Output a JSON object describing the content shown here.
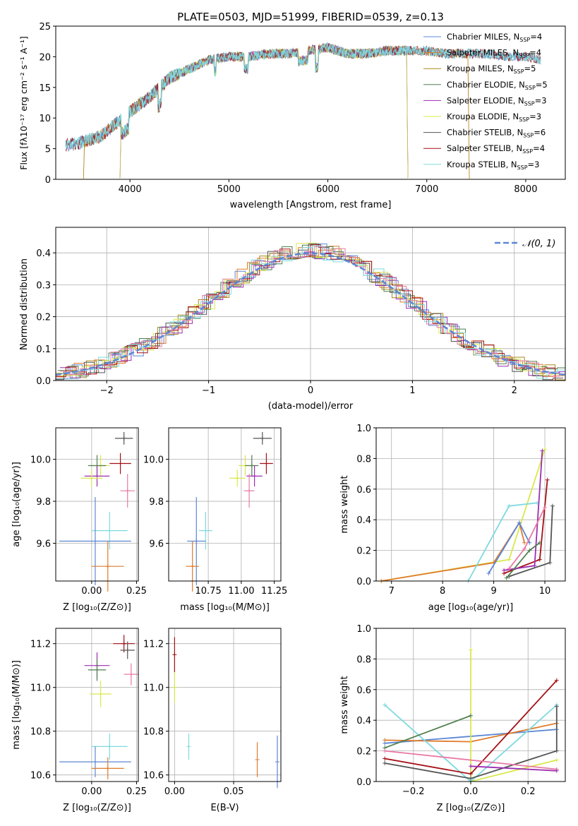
{
  "colors": {
    "chabrier_miles": "#5b87d4",
    "salpeter_miles": "#e07b2c",
    "kroupa_miles": "#a8891e",
    "chabrier_elodie": "#4f7f4f",
    "salpeter_elodie": "#9c2fb0",
    "kroupa_elodie": "#d9e84a",
    "chabrier_stelib": "#555555",
    "salpeter_stelib": "#a50f15",
    "kroupa_stelib": "#7fd9df",
    "extra_pink": "#e87aa5",
    "normal_curve": "#5b87d4"
  },
  "chart_data": [
    {
      "id": "spectrum",
      "type": "line",
      "title": "PLATE=0503, MJD=51999, FIBERID=0539, z=0.13",
      "xlabel": "wavelength [Angstrom, rest frame]",
      "ylabel": "Flux [fλ10⁻¹⁷ erg cm⁻² s⁻¹ A⁻¹]",
      "xlim": [
        3250,
        8400
      ],
      "ylim": [
        0,
        25
      ],
      "xticks": [
        "4000",
        "5000",
        "6000",
        "7000",
        "8000"
      ],
      "yticks": [
        "0",
        "5",
        "10",
        "15",
        "20",
        "25"
      ],
      "legend_position": "top-right",
      "continuum": {
        "x": [
          3350,
          3500,
          3700,
          3850,
          4000,
          4200,
          4400,
          4600,
          4800,
          5000,
          5200,
          5400,
          5600,
          5800,
          6000,
          6200,
          6400,
          6600,
          6800,
          7000,
          7200,
          7400,
          7600,
          7800,
          8000,
          8150
        ],
        "y": [
          5.5,
          6.0,
          7.0,
          9.0,
          11.0,
          13.5,
          16.5,
          18.0,
          19.5,
          20.0,
          20.0,
          20.5,
          20.5,
          21.0,
          21.5,
          20.5,
          20.5,
          21.0,
          21.0,
          21.0,
          20.5,
          20.5,
          20.5,
          20.0,
          20.0,
          19.5
        ]
      },
      "series": [
        {
          "name": "Chabrier MILES, N_SSP=4",
          "color_key": "chabrier_miles",
          "x_start": 3350
        },
        {
          "name": "Salpeter MILES, N_SSP=4",
          "color_key": "salpeter_miles",
          "x_start": 3540,
          "x_end": 7420
        },
        {
          "name": "Kroupa MILES, N_SSP=5",
          "color_key": "kroupa_miles",
          "x_start": 3540,
          "x_end": 7420
        },
        {
          "name": "Chabrier ELODIE, N_SSP=5",
          "color_key": "chabrier_elodie",
          "x_start": 3910,
          "x_end": 6800
        },
        {
          "name": "Salpeter ELODIE, N_SSP=3",
          "color_key": "salpeter_elodie",
          "x_start": 3910,
          "x_end": 6800
        },
        {
          "name": "Kroupa ELODIE, N_SSP=3",
          "color_key": "kroupa_elodie",
          "x_start": 3910,
          "x_end": 6800
        },
        {
          "name": "Chabrier STELIB, N_SSP=6",
          "color_key": "chabrier_stelib",
          "x_start": 3350
        },
        {
          "name": "Salpeter STELIB, N_SSP=4",
          "color_key": "salpeter_stelib",
          "x_start": 3350
        },
        {
          "name": "Kroupa STELIB, N_SSP=3",
          "color_key": "kroupa_stelib",
          "x_start": 3350
        }
      ],
      "legend": [
        {
          "label": "Chabrier MILES, N",
          "sub": "SSP",
          "tail": "=4",
          "color_key": "chabrier_miles"
        },
        {
          "label": "Salpeter MILES, N",
          "sub": "SSP",
          "tail": "=4",
          "color_key": "salpeter_miles"
        },
        {
          "label": "Kroupa MILES, N",
          "sub": "SSP",
          "tail": "=5",
          "color_key": "kroupa_miles"
        },
        {
          "label": "Chabrier ELODIE, N",
          "sub": "SSP",
          "tail": "=5",
          "color_key": "chabrier_elodie"
        },
        {
          "label": "Salpeter ELODIE, N",
          "sub": "SSP",
          "tail": "=3",
          "color_key": "salpeter_elodie"
        },
        {
          "label": "Kroupa ELODIE, N",
          "sub": "SSP",
          "tail": "=3",
          "color_key": "kroupa_elodie"
        },
        {
          "label": "Chabrier STELIB, N",
          "sub": "SSP",
          "tail": "=6",
          "color_key": "chabrier_stelib"
        },
        {
          "label": "Salpeter STELIB, N",
          "sub": "SSP",
          "tail": "=4",
          "color_key": "salpeter_stelib"
        },
        {
          "label": "Kroupa STELIB, N",
          "sub": "SSP",
          "tail": "=3",
          "color_key": "kroupa_stelib"
        }
      ]
    },
    {
      "id": "residuals",
      "type": "bar",
      "xlabel": "(data-model)/error",
      "ylabel": "Normed distribution",
      "xlim": [
        -2.5,
        2.5
      ],
      "ylim": [
        0,
        0.48
      ],
      "xticks": [
        -2,
        -1,
        0,
        1,
        2
      ],
      "yticks": [
        0.0,
        0.1,
        0.2,
        0.3,
        0.4
      ],
      "grid": true,
      "bin_width": 0.1,
      "legend_position": "top-right",
      "legend_label": "𝒩(0, 1)",
      "histogram_color_keys": [
        "chabrier_miles",
        "salpeter_miles",
        "kroupa_miles",
        "chabrier_elodie",
        "salpeter_elodie",
        "kroupa_elodie",
        "chabrier_stelib",
        "salpeter_stelib",
        "kroupa_stelib",
        "extra_pink"
      ]
    },
    {
      "id": "age_vs_z",
      "type": "scatter",
      "xlabel": "Z [log₁₀(Z/Z⊙)]",
      "ylabel": "age  [log₁₀(age/yr)]",
      "xlim": [
        -0.2,
        0.26
      ],
      "ylim": [
        9.42,
        10.15
      ],
      "xticks": [
        "0.00",
        "0.25"
      ],
      "xtick_values": [
        0.0,
        0.25
      ],
      "yticks": [
        "9.6",
        "9.8",
        "10.0"
      ],
      "ytick_values": [
        9.6,
        9.8,
        10.0
      ],
      "grid": true,
      "points": [
        {
          "color_key": "chabrier_stelib",
          "x": 0.18,
          "y": 10.1,
          "xerr": 0.05,
          "yerr": 0.03
        },
        {
          "color_key": "salpeter_stelib",
          "x": 0.16,
          "y": 9.98,
          "xerr": 0.06,
          "yerr": 0.05
        },
        {
          "color_key": "kroupa_elodie",
          "x": 0.05,
          "y": 9.97,
          "xerr": 0.05,
          "yerr": 0.05
        },
        {
          "color_key": "chabrier_elodie",
          "x": 0.03,
          "y": 9.97,
          "xerr": 0.05,
          "yerr": 0.05
        },
        {
          "color_key": "salpeter_elodie",
          "x": 0.03,
          "y": 9.92,
          "xerr": 0.07,
          "yerr": 0.05
        },
        {
          "color_key": "kroupa_elodie",
          "x": 0.0,
          "y": 9.91,
          "xerr": 0.06,
          "yerr": 0.04
        },
        {
          "color_key": "extra_pink",
          "x": 0.2,
          "y": 9.85,
          "xerr": 0.04,
          "yerr": 0.08
        },
        {
          "color_key": "kroupa_stelib",
          "x": 0.1,
          "y": 9.66,
          "xerr": 0.1,
          "yerr": 0.09
        },
        {
          "color_key": "chabrier_miles",
          "x": 0.02,
          "y": 9.61,
          "xerr": 0.2,
          "yerr": 0.21
        },
        {
          "color_key": "salpeter_miles",
          "x": 0.09,
          "y": 9.49,
          "xerr": 0.09,
          "yerr": 0.12
        }
      ]
    },
    {
      "id": "age_vs_mass",
      "type": "scatter",
      "xlabel": "mass [log₁₀(M/M⊙)]",
      "ylabel": "",
      "xlim": [
        10.45,
        11.3
      ],
      "ylim": [
        9.42,
        10.15
      ],
      "xticks": [
        "10.75",
        "11.00",
        "11.25"
      ],
      "xtick_values": [
        10.75,
        11.0,
        11.25
      ],
      "yticks": [
        "9.6",
        "9.8",
        "10.0"
      ],
      "ytick_values": [
        9.6,
        9.8,
        10.0
      ],
      "grid": true,
      "points": [
        {
          "color_key": "chabrier_stelib",
          "x": 11.16,
          "y": 10.1,
          "xerr": 0.07,
          "yerr": 0.03
        },
        {
          "color_key": "salpeter_stelib",
          "x": 11.19,
          "y": 9.98,
          "xerr": 0.05,
          "yerr": 0.05
        },
        {
          "color_key": "kroupa_elodie",
          "x": 11.03,
          "y": 9.97,
          "xerr": 0.05,
          "yerr": 0.05
        },
        {
          "color_key": "chabrier_elodie",
          "x": 11.08,
          "y": 9.97,
          "xerr": 0.05,
          "yerr": 0.05
        },
        {
          "color_key": "salpeter_elodie",
          "x": 11.1,
          "y": 9.92,
          "xerr": 0.06,
          "yerr": 0.05
        },
        {
          "color_key": "kroupa_elodie",
          "x": 10.97,
          "y": 9.91,
          "xerr": 0.06,
          "yerr": 0.04
        },
        {
          "color_key": "extra_pink",
          "x": 11.06,
          "y": 9.85,
          "xerr": 0.04,
          "yerr": 0.08
        },
        {
          "color_key": "kroupa_stelib",
          "x": 10.73,
          "y": 9.66,
          "xerr": 0.05,
          "yerr": 0.09
        },
        {
          "color_key": "chabrier_miles",
          "x": 10.66,
          "y": 9.61,
          "xerr": 0.07,
          "yerr": 0.21
        },
        {
          "color_key": "salpeter_miles",
          "x": 10.63,
          "y": 9.49,
          "xerr": 0.05,
          "yerr": 0.12
        }
      ]
    },
    {
      "id": "weight_vs_age",
      "type": "line",
      "xlabel": "age  [log₁₀(age/yr)]",
      "ylabel": "mass weight",
      "xlim": [
        6.7,
        10.4
      ],
      "ylim": [
        0,
        1.0
      ],
      "xticks": [
        "7",
        "8",
        "9",
        "10"
      ],
      "xtick_values": [
        7,
        8,
        9,
        10
      ],
      "yticks": [
        "0.0",
        "0.2",
        "0.4",
        "0.6",
        "0.8",
        "1.0"
      ],
      "ytick_values": [
        0,
        0.2,
        0.4,
        0.6,
        0.8,
        1.0
      ],
      "grid": true,
      "series": [
        {
          "color_key": "kroupa_elodie",
          "x": [
            6.8,
            9.3,
            10.0
          ],
          "y": [
            0.0,
            0.14,
            0.86
          ]
        },
        {
          "color_key": "salpeter_miles",
          "x": [
            6.8,
            9.0,
            9.5,
            9.6
          ],
          "y": [
            0.0,
            0.12,
            0.38,
            0.25
          ]
        },
        {
          "color_key": "chabrier_miles",
          "x": [
            8.9,
            9.5,
            9.7
          ],
          "y": [
            0.05,
            0.38,
            0.25
          ]
        },
        {
          "color_key": "kroupa_stelib",
          "x": [
            8.5,
            9.3,
            9.85
          ],
          "y": [
            0.0,
            0.49,
            0.51
          ]
        },
        {
          "color_key": "salpeter_stelib",
          "x": [
            9.2,
            9.9,
            10.05
          ],
          "y": [
            0.05,
            0.14,
            0.66
          ]
        },
        {
          "color_key": "salpeter_elodie",
          "x": [
            9.2,
            9.8,
            9.95
          ],
          "y": [
            0.07,
            0.1,
            0.85
          ]
        },
        {
          "color_key": "chabrier_stelib",
          "x": [
            9.3,
            10.1,
            10.15
          ],
          "y": [
            0.03,
            0.12,
            0.49
          ]
        },
        {
          "color_key": "chabrier_elodie",
          "x": [
            9.25,
            9.7,
            9.9
          ],
          "y": [
            0.02,
            0.2,
            0.25
          ]
        },
        {
          "color_key": "extra_pink",
          "x": [
            9.3,
            9.6,
            10.0
          ],
          "y": [
            0.08,
            0.21,
            0.48
          ]
        }
      ]
    },
    {
      "id": "mass_vs_z",
      "type": "scatter",
      "xlabel": "Z [log₁₀(Z/Z⊙)]",
      "ylabel": "mass [log₁₀(M/M⊙)]",
      "xlim": [
        -0.2,
        0.26
      ],
      "ylim": [
        10.57,
        11.27
      ],
      "xticks": [
        "0.00",
        "0.25"
      ],
      "xtick_values": [
        0.0,
        0.25
      ],
      "yticks": [
        "10.6",
        "10.8",
        "11.0",
        "11.2"
      ],
      "ytick_values": [
        10.6,
        10.8,
        11.0,
        11.2
      ],
      "grid": true,
      "points": [
        {
          "color_key": "salpeter_stelib",
          "x": 0.18,
          "y": 11.2,
          "xerr": 0.06,
          "yerr": 0.04
        },
        {
          "color_key": "chabrier_stelib",
          "x": 0.2,
          "y": 11.17,
          "xerr": 0.04,
          "yerr": 0.04
        },
        {
          "color_key": "salpeter_elodie",
          "x": 0.03,
          "y": 11.1,
          "xerr": 0.07,
          "yerr": 0.06
        },
        {
          "color_key": "chabrier_elodie",
          "x": 0.03,
          "y": 11.08,
          "xerr": 0.05,
          "yerr": 0.05
        },
        {
          "color_key": "extra_pink",
          "x": 0.22,
          "y": 11.06,
          "xerr": 0.04,
          "yerr": 0.05
        },
        {
          "color_key": "kroupa_elodie",
          "x": 0.05,
          "y": 10.97,
          "xerr": 0.06,
          "yerr": 0.06
        },
        {
          "color_key": "kroupa_stelib",
          "x": 0.1,
          "y": 10.73,
          "xerr": 0.1,
          "yerr": 0.06
        },
        {
          "color_key": "chabrier_miles",
          "x": 0.02,
          "y": 10.66,
          "xerr": 0.2,
          "yerr": 0.07
        },
        {
          "color_key": "salpeter_miles",
          "x": 0.09,
          "y": 10.63,
          "xerr": 0.09,
          "yerr": 0.05
        }
      ]
    },
    {
      "id": "mass_vs_ebv",
      "type": "scatter",
      "xlabel": "E(B-V)",
      "ylabel": "",
      "xlim": [
        -0.005,
        0.09
      ],
      "ylim": [
        10.57,
        11.27
      ],
      "xticks": [
        "0.00",
        "0.05"
      ],
      "xtick_values": [
        0.0,
        0.05
      ],
      "yticks": [
        "10.6",
        "10.8",
        "11.0",
        "11.2"
      ],
      "ytick_values": [
        10.6,
        10.8,
        11.0,
        11.2
      ],
      "grid": true,
      "points": [
        {
          "color_key": "salpeter_stelib",
          "x": 0.0,
          "y": 11.15,
          "xerr": 0.0,
          "yerr": 0.08
        },
        {
          "color_key": "kroupa_elodie",
          "x": 0.0,
          "y": 11.0,
          "xerr": 0.0,
          "yerr": 0.07
        },
        {
          "color_key": "kroupa_stelib",
          "x": 0.012,
          "y": 10.73,
          "xerr": 0.0,
          "yerr": 0.06
        },
        {
          "color_key": "salpeter_miles",
          "x": 0.07,
          "y": 10.67,
          "xerr": 0.0,
          "yerr": 0.08
        },
        {
          "color_key": "chabrier_miles",
          "x": 0.087,
          "y": 10.66,
          "xerr": 0.0,
          "yerr": 0.12
        }
      ]
    },
    {
      "id": "weight_vs_z",
      "type": "line",
      "xlabel": "Z [log₁₀(Z/Z⊙)]",
      "ylabel": "mass weight",
      "xlim": [
        -0.33,
        0.33
      ],
      "ylim": [
        0,
        1.0
      ],
      "xticks": [
        "−0.2",
        "0.0",
        "0.2"
      ],
      "xtick_values": [
        -0.2,
        0.0,
        0.2
      ],
      "yticks": [
        "0.0",
        "0.2",
        "0.4",
        "0.6",
        "0.8",
        "1.0"
      ],
      "ytick_values": [
        0,
        0.2,
        0.4,
        0.6,
        0.8,
        1.0
      ],
      "grid": true,
      "series": [
        {
          "color_key": "chabrier_miles",
          "x": [
            -0.3,
            0.3
          ],
          "y": [
            0.25,
            0.34
          ]
        },
        {
          "color_key": "salpeter_miles",
          "x": [
            -0.3,
            0.0,
            0.3
          ],
          "y": [
            0.27,
            0.26,
            0.38
          ]
        },
        {
          "color_key": "kroupa_elodie",
          "x": [
            0.0,
            0.0,
            0.3
          ],
          "y": [
            0.86,
            0.0,
            0.14
          ]
        },
        {
          "color_key": "kroupa_stelib",
          "x": [
            -0.3,
            0.0,
            0.3
          ],
          "y": [
            0.5,
            0.0,
            0.5
          ]
        },
        {
          "color_key": "chabrier_elodie",
          "x": [
            -0.3,
            0.0
          ],
          "y": [
            0.22,
            0.43
          ]
        },
        {
          "color_key": "salpeter_stelib",
          "x": [
            -0.3,
            0.0,
            0.3
          ],
          "y": [
            0.15,
            0.05,
            0.66
          ]
        },
        {
          "color_key": "chabrier_stelib",
          "x": [
            -0.3,
            0.0,
            0.3,
            0.3
          ],
          "y": [
            0.12,
            0.02,
            0.2,
            0.49
          ]
        },
        {
          "color_key": "extra_pink",
          "x": [
            -0.3,
            0.3
          ],
          "y": [
            0.2,
            0.08
          ]
        },
        {
          "color_key": "salpeter_elodie",
          "x": [
            0.0,
            0.3
          ],
          "y": [
            0.1,
            0.07
          ]
        }
      ]
    }
  ]
}
